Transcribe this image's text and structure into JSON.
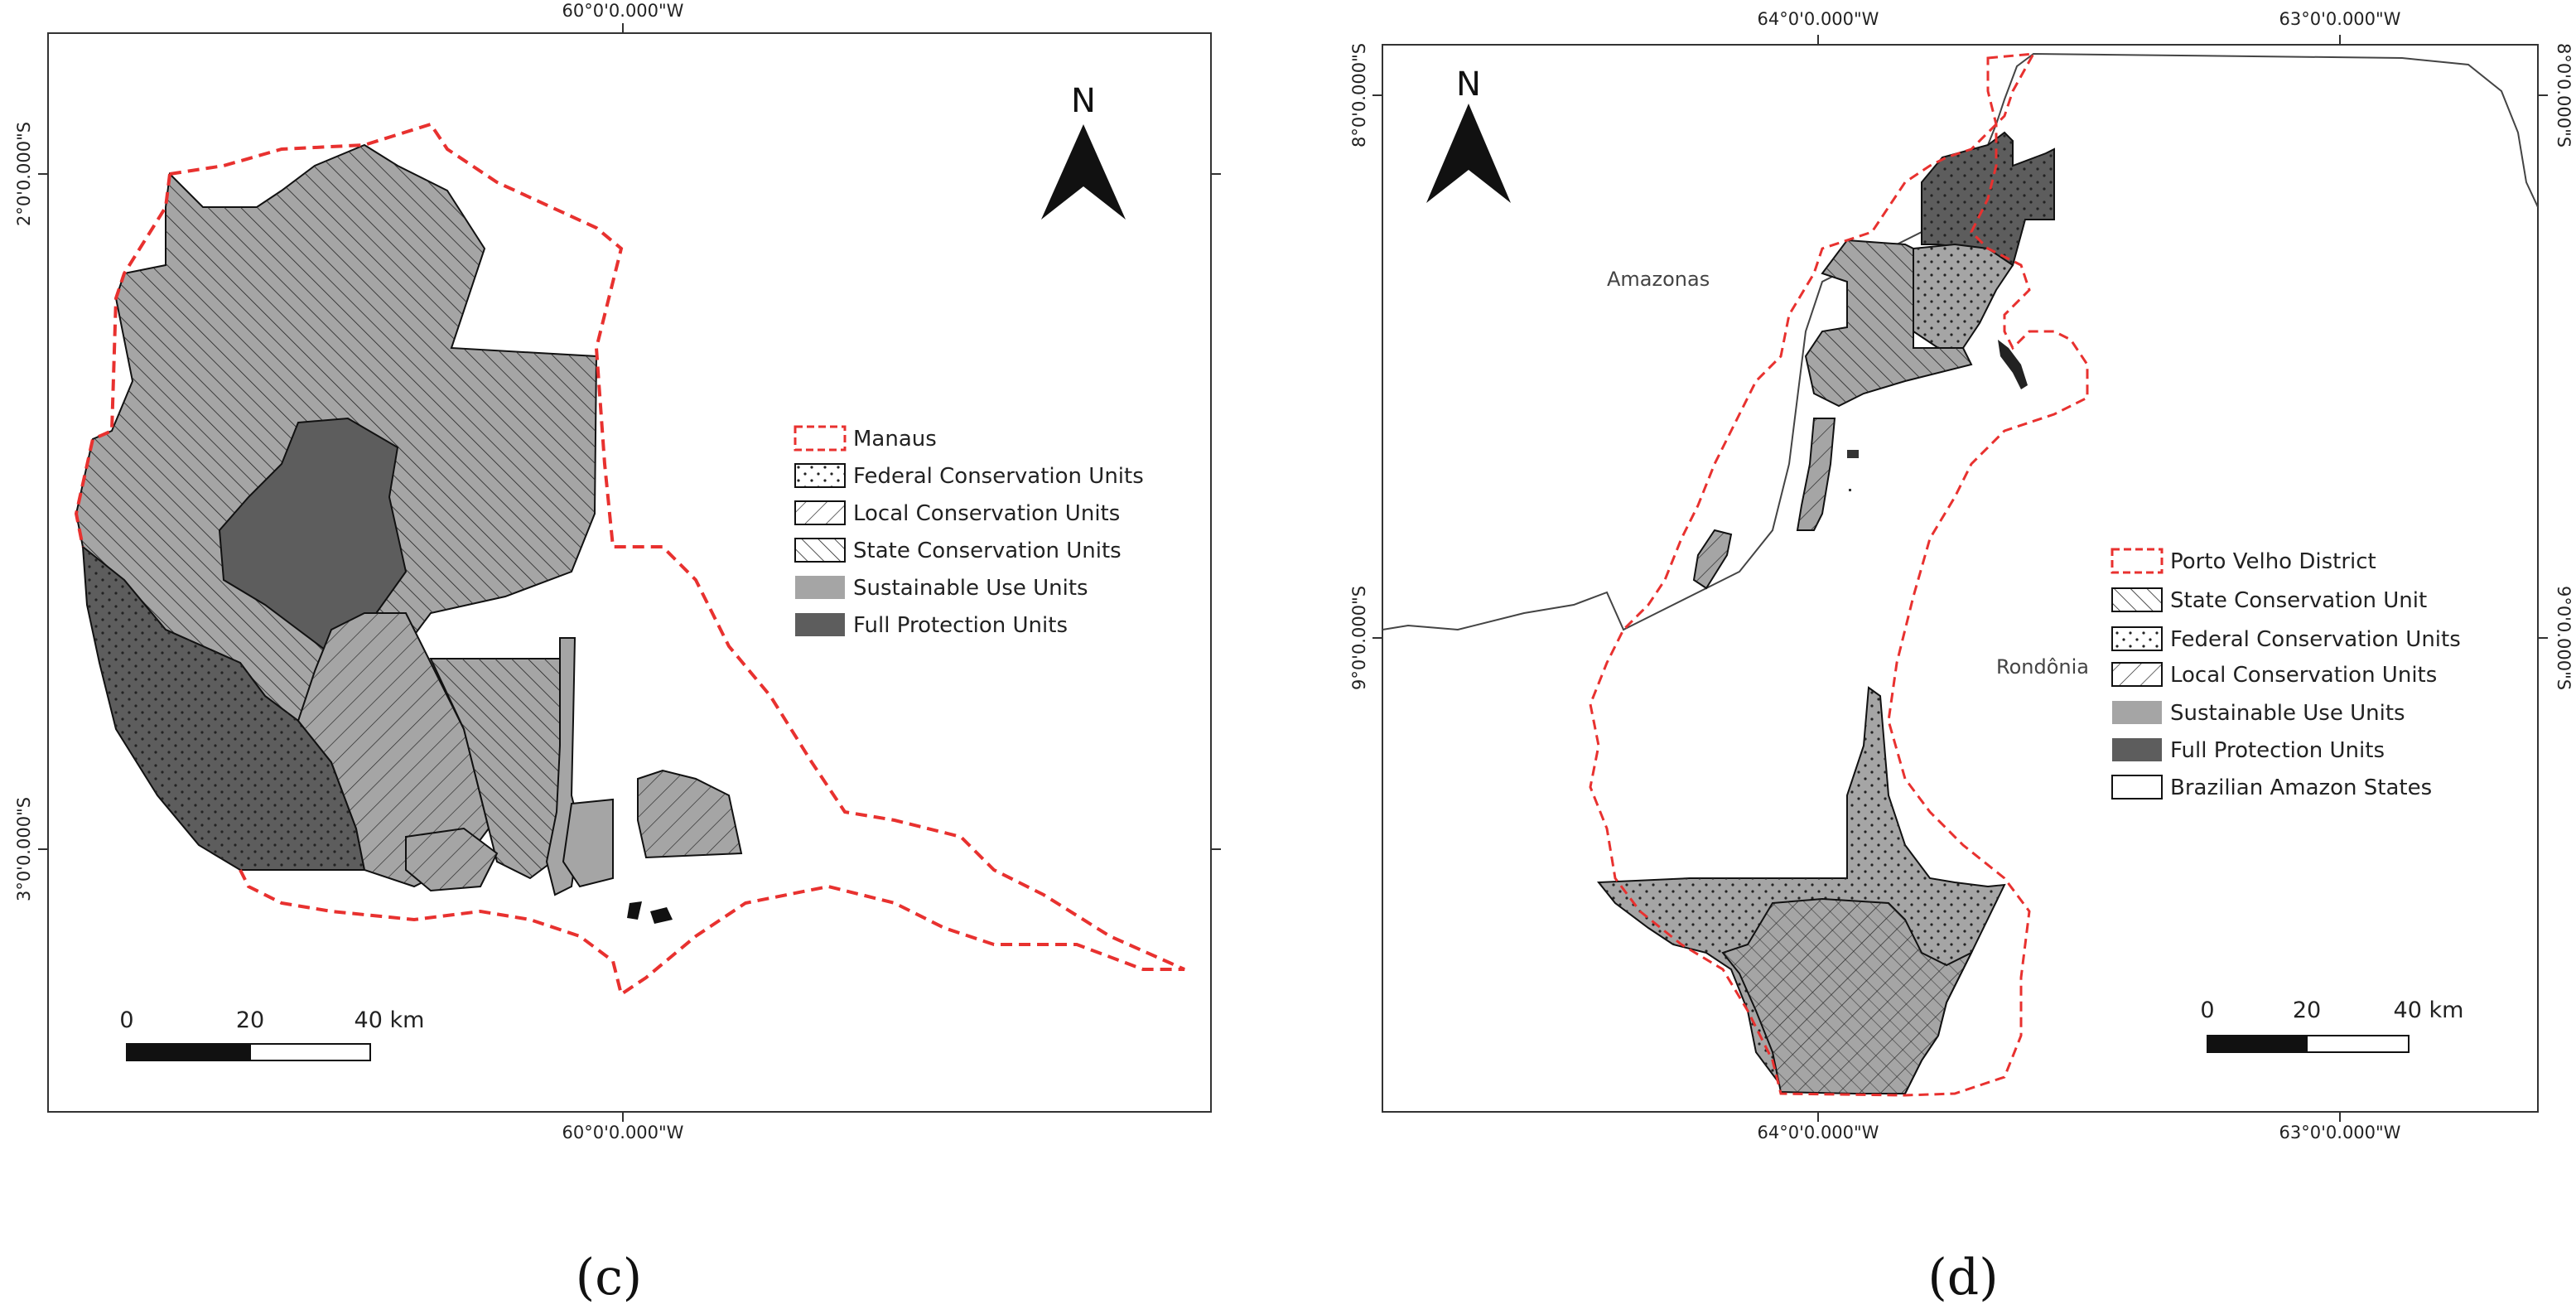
{
  "panels": {
    "c": {
      "label": "(c)",
      "coords": {
        "top_lon": "60°0'0.000\"W",
        "bottom_lon": "60°0'0.000\"W",
        "lat_top": "2°0'0.000\"S",
        "lat_bottom": "3°0'0.000\"S"
      },
      "north": "N",
      "legend": [
        {
          "symbol": "dashed-red",
          "label": "Manaus"
        },
        {
          "symbol": "dots",
          "label": "Federal Conservation Units"
        },
        {
          "symbol": "hatch-right",
          "label": "Local Conservation Units"
        },
        {
          "symbol": "hatch-cross",
          "label": "State Conservation Units"
        },
        {
          "symbol": "fill-gray",
          "label": "Sustainable Use Units"
        },
        {
          "symbol": "fill-dark",
          "label": "Full Protection Units"
        }
      ],
      "scale": {
        "ticks": [
          "0",
          "20",
          "40 km"
        ]
      }
    },
    "d": {
      "label": "(d)",
      "coords": {
        "top_lon_left": "64°0'0.000\"W",
        "top_lon_right": "63°0'0.000\"W",
        "bottom_lon_left": "64°0'0.000\"W",
        "bottom_lon_right": "63°0'0.000\"W",
        "lat_left_top": "8°0'0.000\"S",
        "lat_left_bottom": "9°0'0.000\"S",
        "lat_right_top": "8°0'0.000\"S",
        "lat_right_bottom": "9°0'0.000\"S"
      },
      "north": "N",
      "places": {
        "amazonas": "Amazonas",
        "rondonia": "Rondônia"
      },
      "legend": [
        {
          "symbol": "dashed-red",
          "label": "Porto Velho District"
        },
        {
          "symbol": "hatch-cross",
          "label": "State Conservation Unit"
        },
        {
          "symbol": "dots",
          "label": "Federal Conservation Units"
        },
        {
          "symbol": "hatch-right",
          "label": "Local Conservation Units"
        },
        {
          "symbol": "fill-gray",
          "label": "Sustainable Use Units"
        },
        {
          "symbol": "fill-dark",
          "label": "Full Protection Units"
        },
        {
          "symbol": "empty",
          "label": "Brazilian Amazon States"
        }
      ],
      "scale": {
        "ticks": [
          "0",
          "20",
          "40 km"
        ]
      }
    }
  },
  "colors": {
    "boundary": "#e8312f",
    "sustainable": "#a5a5a5",
    "full_protection": "#5d5d5d",
    "frame": "#333333"
  }
}
